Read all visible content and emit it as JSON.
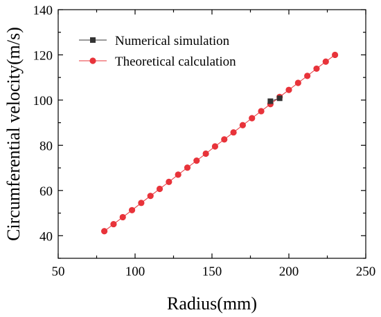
{
  "chart_data": {
    "type": "line",
    "title": "",
    "xlabel": "Radius(mm)",
    "ylabel": "Circumferential velocity(m/s)",
    "xlim": [
      50,
      250
    ],
    "ylim": [
      30,
      140
    ],
    "xticks": [
      50,
      100,
      150,
      200,
      250
    ],
    "yticks": [
      40,
      60,
      80,
      100,
      120,
      140
    ],
    "grid": false,
    "legend_position": "top-left",
    "series": [
      {
        "name": "Numerical simulation",
        "color": "#333333",
        "marker": "square",
        "x": [
          188,
          194
        ],
        "y": [
          99.5,
          100.8
        ]
      },
      {
        "name": "Theoretical calculation",
        "color": "#e8333a",
        "marker": "circle",
        "x": [
          80,
          86,
          92,
          98,
          104,
          110,
          116,
          122,
          128,
          134,
          140,
          146,
          152,
          158,
          164,
          170,
          176,
          182,
          188,
          194,
          200,
          206,
          212,
          218,
          224,
          230
        ],
        "y": [
          42.0,
          45.1,
          48.2,
          51.3,
          54.5,
          57.6,
          60.7,
          63.8,
          67.0,
          70.1,
          73.2,
          76.3,
          79.5,
          82.6,
          85.7,
          88.9,
          92.0,
          95.1,
          98.2,
          101.4,
          104.5,
          107.6,
          110.7,
          113.9,
          117.0,
          120.0
        ]
      }
    ]
  }
}
